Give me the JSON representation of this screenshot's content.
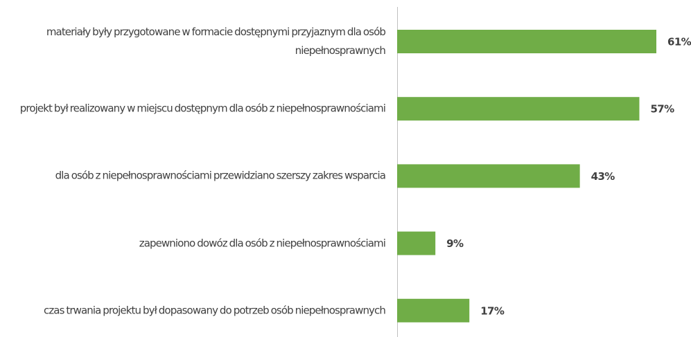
{
  "chart_data": {
    "type": "bar",
    "orientation": "horizontal",
    "categories": [
      "materiały były przygotowane w formacie dostępnymi przyjaznym dla osób niepełnosprawnych",
      "projekt był realizowany w miejscu dostępnym dla osób z niepełnosprawnościami",
      "dla osób z niepełnosprawnościami przewidziano szerszy zakres wsparcia",
      "zapewniono dowóz dla osób z niepełnosprawnościami",
      "czas trwania projektu był dopasowany do potrzeb osób niepełnosprawnych"
    ],
    "values": [
      61,
      57,
      43,
      9,
      17
    ],
    "value_labels": [
      "61%",
      "57%",
      "43%",
      "9%",
      "17%"
    ],
    "color": "#70ad47"
  }
}
